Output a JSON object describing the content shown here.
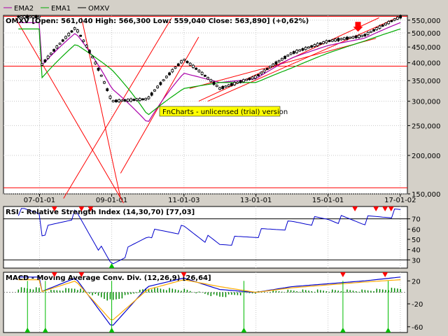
{
  "legend": [
    {
      "name": "EMA2",
      "color": "#aa00aa"
    },
    {
      "name": "EMA1",
      "color": "#00aa00"
    },
    {
      "name": "OMXV",
      "color": "#000000"
    }
  ],
  "price_panel": {
    "title": "OMXV [Open: 561,040  High: 566,300  Low: 559,040  Close: 563,890] (+0,62%)",
    "watermark": "FnCharts - unlicensed (trial) version"
  },
  "rsi_panel": {
    "title": "RSI - Relative Strength Index (14,30,70) [77,03]"
  },
  "macd_panel": {
    "title": "MACD - Moving Average Conv. Div. (12,26,9) [26,64]"
  },
  "colors": {
    "price": "#000000",
    "ema2": "#aa00aa",
    "ema1": "#00aa00",
    "trend": "#ff0000",
    "rsi": "#0000cc",
    "macd": "#0000cc",
    "signal": "#ffaa00",
    "hist": "#008800",
    "sell_marker": "#ff0000",
    "buy_marker": "#00bb00",
    "watermark_bg": "#ffff00"
  },
  "chart_data": [
    {
      "type": "line",
      "name": "OMXV price",
      "x": [
        "2007-01-01",
        "2008-01-01",
        "2009-01-01",
        "2010-01-01",
        "2011-01-01",
        "2012-01-01",
        "2013-01-01",
        "2014-01-01",
        "2015-01-01",
        "2016-01-01",
        "2017-01-01"
      ],
      "x_tick_labels": [
        "07-01-01",
        "09-01-01",
        "11-01-03",
        "13-01-01",
        "15-01-01",
        "17-01-02"
      ],
      "y_ticks": [
        "150,000",
        "200,000",
        "250,000",
        "300,000",
        "350,000",
        "400,000",
        "450,000",
        "500,000",
        "550,000"
      ],
      "ylim": [
        150000,
        570000
      ],
      "scale": "log",
      "series": [
        {
          "name": "OMXV",
          "values": [
            385000,
            520000,
            300000,
            305000,
            410000,
            330000,
            360000,
            430000,
            470000,
            490000,
            563890
          ]
        },
        {
          "name": "EMA2",
          "values": [
            385000,
            500000,
            330000,
            255000,
            370000,
            345000,
            355000,
            415000,
            455000,
            480000,
            540000
          ]
        },
        {
          "name": "EMA1",
          "values": [
            350000,
            460000,
            380000,
            270000,
            330000,
            345000,
            345000,
            385000,
            430000,
            470000,
            515000
          ]
        }
      ],
      "horizontal_levels": [
        390000,
        157000
      ]
    },
    {
      "type": "line",
      "name": "RSI",
      "x": [
        "2007-01-01",
        "2008-01-01",
        "2009-01-01",
        "2010-01-01",
        "2011-01-01",
        "2012-01-01",
        "2013-01-01",
        "2014-01-01",
        "2015-01-01",
        "2016-01-01",
        "2017-01-01"
      ],
      "y_ticks": [
        "30",
        "40",
        "50",
        "60",
        "70"
      ],
      "ylim": [
        22,
        82
      ],
      "series": [
        {
          "name": "RSI",
          "values": [
            55,
            75,
            25,
            55,
            60,
            45,
            55,
            65,
            70,
            68,
            77.03
          ]
        }
      ],
      "levels": [
        30,
        70
      ]
    },
    {
      "type": "line",
      "name": "MACD",
      "x": [
        "2007-01-01",
        "2008-01-01",
        "2009-01-01",
        "2010-01-01",
        "2011-01-01",
        "2012-01-01",
        "2013-01-01",
        "2014-01-01",
        "2015-01-01",
        "2016-01-01",
        "2017-01-01"
      ],
      "y_ticks": [
        "20",
        "-20",
        "-60"
      ],
      "ylim": [
        -70,
        35
      ],
      "series": [
        {
          "name": "MACD",
          "values": [
            0,
            25,
            -60,
            10,
            25,
            5,
            0,
            10,
            15,
            20,
            26.64
          ]
        },
        {
          "name": "Signal",
          "values": [
            0,
            20,
            -50,
            5,
            22,
            10,
            0,
            8,
            13,
            18,
            22
          ]
        }
      ]
    }
  ]
}
